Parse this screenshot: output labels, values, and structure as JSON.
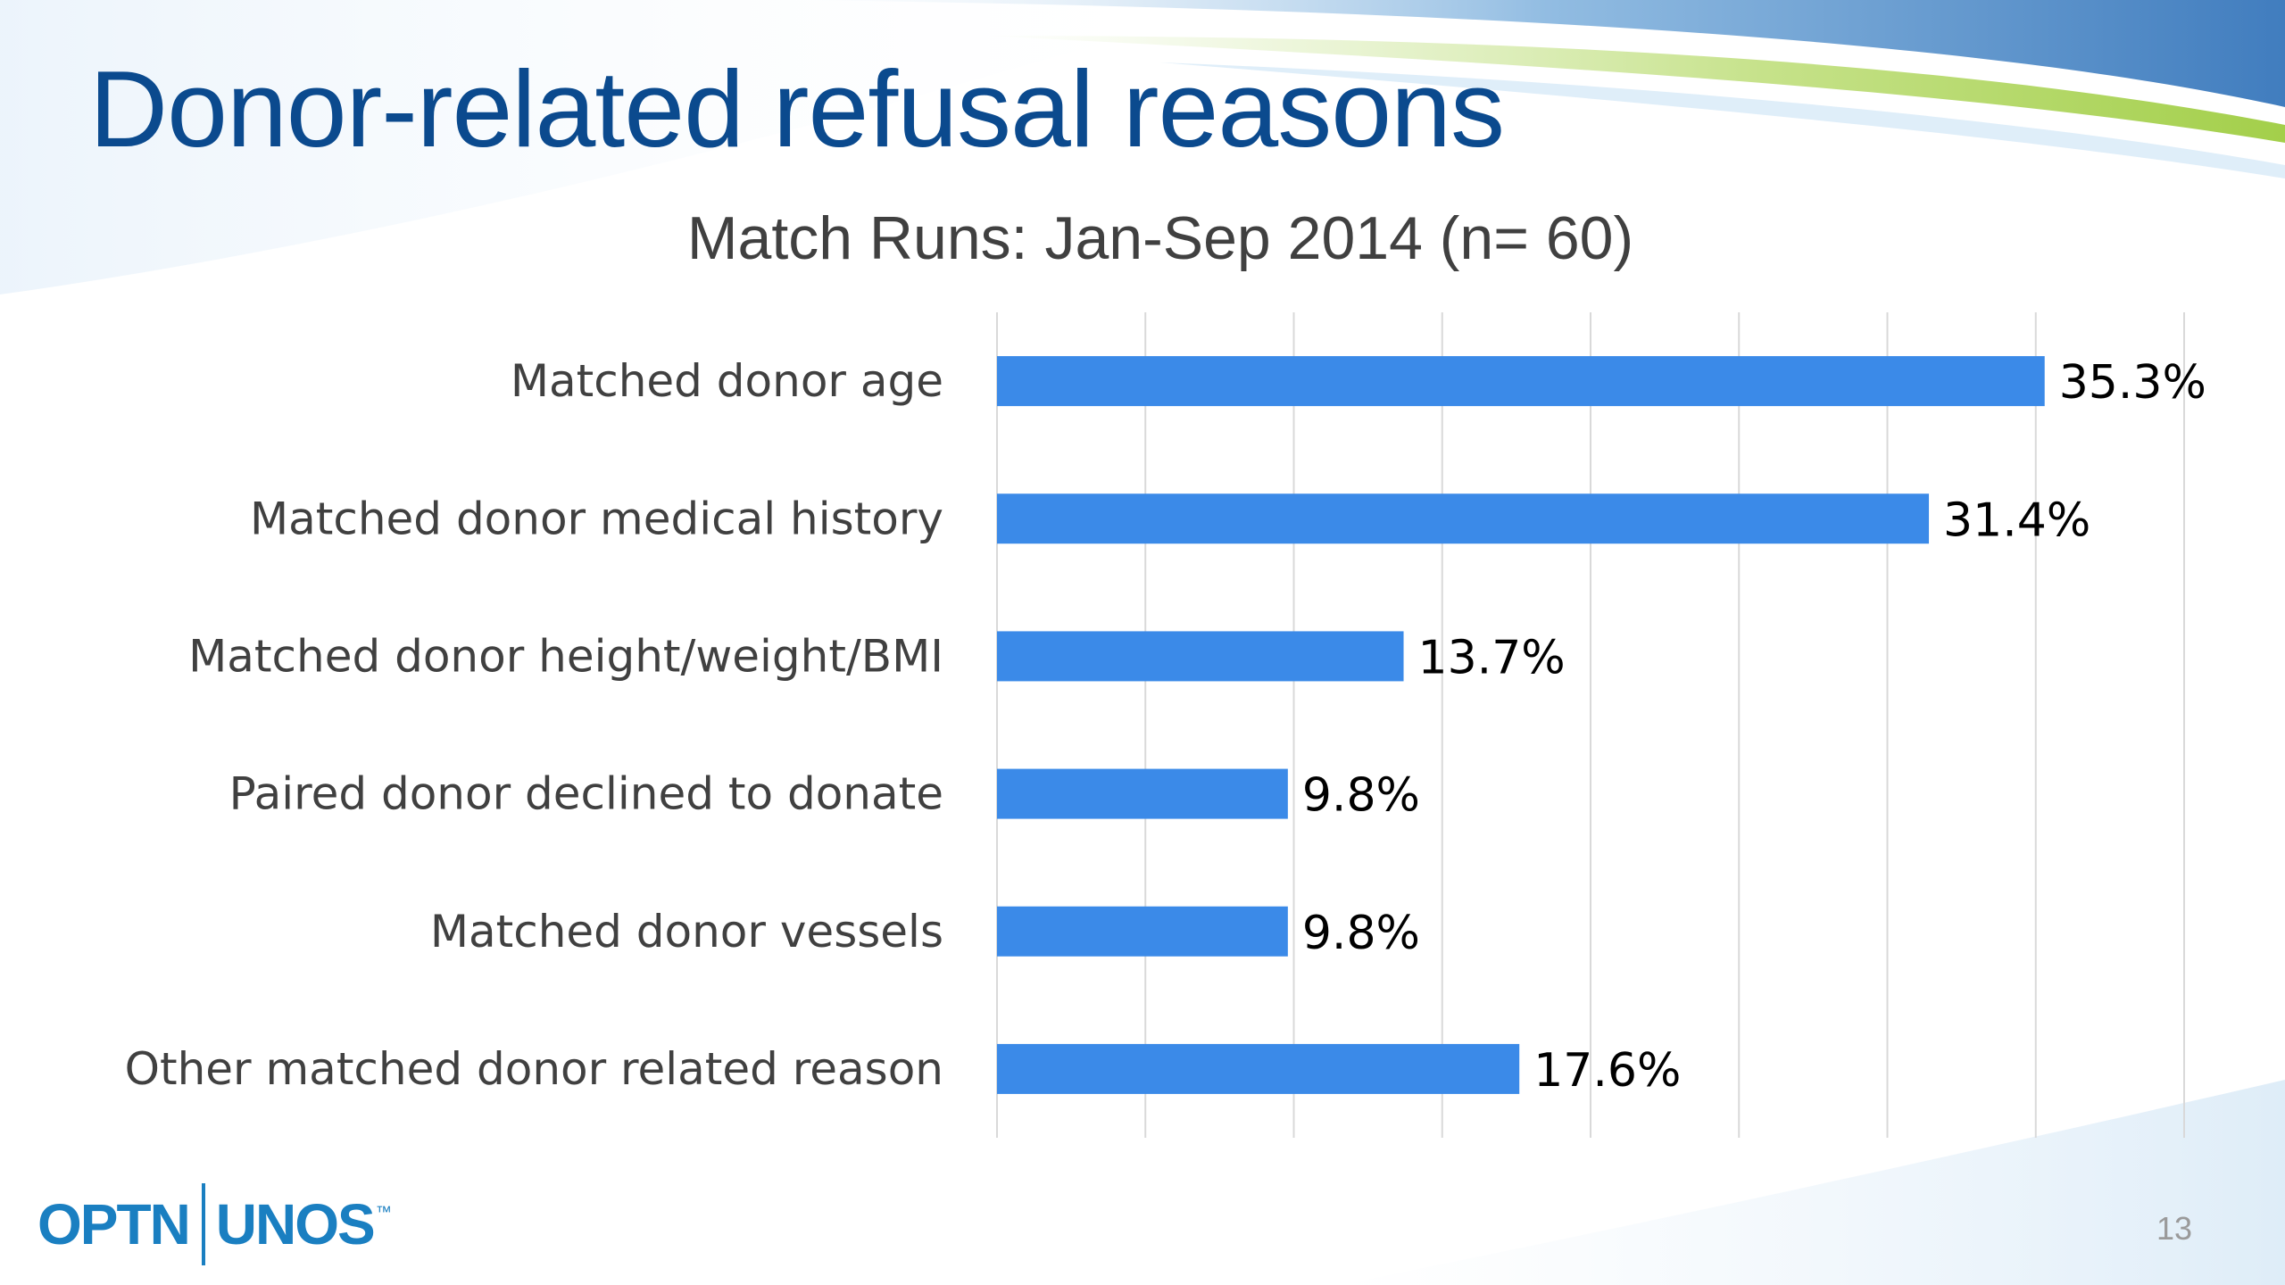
{
  "slide": {
    "title": "Donor-related refusal reasons",
    "page_number": "13",
    "logo": {
      "left": "OPTN",
      "right": "UNOS",
      "mark": "™"
    }
  },
  "colors": {
    "bar": "#3b8ae8",
    "title": "#0b4a8e",
    "accent_green": "#a3cf4a",
    "accent_blue": "#1f66b3"
  },
  "chart_data": {
    "type": "bar",
    "orientation": "horizontal",
    "title": "Match Runs: Jan-Sep 2014 (n= 60)",
    "categories": [
      "Matched donor age",
      "Matched donor medical history",
      "Matched donor height/weight/BMI",
      "Paired donor declined to donate",
      "Matched donor vessels",
      "Other matched donor related reason"
    ],
    "values": [
      35.3,
      31.4,
      13.7,
      9.8,
      9.8,
      17.6
    ],
    "value_labels": [
      "35.3%",
      "31.4%",
      "13.7%",
      "9.8%",
      "9.8%",
      "17.6%"
    ],
    "xlim": [
      0,
      40
    ],
    "gridlines": true,
    "grid_step": 5,
    "legend": "none"
  }
}
